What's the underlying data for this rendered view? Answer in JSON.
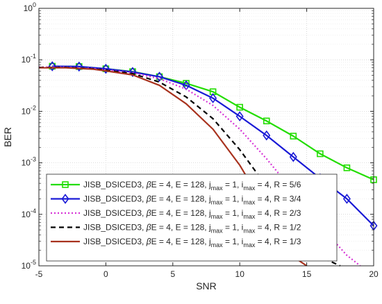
{
  "chart_data": {
    "type": "line",
    "title": "",
    "xlabel": "SNR",
    "ylabel": "BER",
    "xlim": [
      -5,
      20
    ],
    "ylim": [
      1e-05,
      1
    ],
    "yscale": "log",
    "grid": true,
    "legend_placement": "bottom-left",
    "x_ticks": [
      "-5",
      "0",
      "5",
      "10",
      "15",
      "20"
    ],
    "y_ticks": [
      {
        "base": "10",
        "exp": "0"
      },
      {
        "base": "10",
        "exp": "-1"
      },
      {
        "base": "10",
        "exp": "-2"
      },
      {
        "base": "10",
        "exp": "-3"
      },
      {
        "base": "10",
        "exp": "-4"
      },
      {
        "base": "10",
        "exp": "-5"
      }
    ],
    "series": [
      {
        "name": "JISB_DSICED3, βE = 4, E = 128, jmax = 1, imax = 4, R = 5/6",
        "legend": {
          "prefix": "JISB_DSICED3, ",
          "beta": "β",
          "mid": "E = 4, E = 128, j",
          "sub1": "max",
          "mid2": " = 1, i",
          "sub2": "max",
          "suffix": " = 4, R = 5/6"
        },
        "color": "#22dd00",
        "dash": "solid",
        "marker": "square",
        "x": [
          -4,
          -2,
          0,
          2,
          4,
          6,
          8,
          10,
          12,
          14,
          16,
          18,
          20
        ],
        "y": [
          0.075,
          0.074,
          0.067,
          0.059,
          0.047,
          0.035,
          0.024,
          0.012,
          0.0065,
          0.0033,
          0.0015,
          0.0008,
          0.00047
        ]
      },
      {
        "name": "JISB_DSICED3, βE = 4, E = 128, jmax = 1, imax = 4, R = 3/4",
        "legend": {
          "prefix": "JISB_DSICED3, ",
          "beta": "β",
          "mid": "E = 4, E = 128, j",
          "sub1": "max",
          "mid2": " = 1, i",
          "sub2": "max",
          "suffix": " = 4, R = 3/4"
        },
        "color": "#1a1ad6",
        "dash": "solid",
        "marker": "diamond",
        "x": [
          -4,
          -2,
          0,
          2,
          4,
          6,
          8,
          10,
          12,
          14,
          16,
          18,
          20
        ],
        "y": [
          0.075,
          0.074,
          0.067,
          0.058,
          0.047,
          0.032,
          0.018,
          0.008,
          0.0034,
          0.0013,
          0.0005,
          0.0002,
          6e-05
        ]
      },
      {
        "name": "JISB_DSICED3, βE = 4, E = 128, jmax = 1, imax = 4, R = 2/3",
        "legend": {
          "prefix": "JISB_DSICED3, ",
          "beta": "β",
          "mid": "E = 4, E = 128, j",
          "sub1": "max",
          "mid2": " = 1, i",
          "sub2": "max",
          "suffix": " = 4, R = 2/3"
        },
        "color": "#d633d6",
        "dash": "dot",
        "marker": "none",
        "x": [
          -5,
          -3,
          -1,
          0,
          2,
          4,
          6,
          8,
          10,
          12,
          14,
          16,
          18,
          19
        ],
        "y": [
          0.072,
          0.072,
          0.068,
          0.064,
          0.056,
          0.043,
          0.027,
          0.013,
          0.0045,
          0.0012,
          0.00028,
          6e-05,
          1.6e-05,
          1e-05
        ]
      },
      {
        "name": "JISB_DSICED3, βE = 4, E = 128, jmax = 1, imax = 4, R = 1/2",
        "legend": {
          "prefix": "JISB_DSICED3, ",
          "beta": "β",
          "mid": "E = 4, E = 128, j",
          "sub1": "max",
          "mid2": " = 1, i",
          "sub2": "max",
          "suffix": " = 4, R = 1/2"
        },
        "color": "#000000",
        "dash": "dash",
        "marker": "none",
        "x": [
          -5,
          -3,
          -1,
          0,
          2,
          4,
          6,
          8,
          10,
          12,
          14,
          16,
          17.5
        ],
        "y": [
          0.071,
          0.071,
          0.067,
          0.063,
          0.054,
          0.037,
          0.019,
          0.0072,
          0.0018,
          0.00035,
          6.5e-05,
          1.5e-05,
          1e-05
        ]
      },
      {
        "name": "JISB_DSICED3, βE = 4, E = 128, jmax = 1, imax = 4, R = 1/3",
        "legend": {
          "prefix": "JISB_DSICED3, ",
          "beta": "β",
          "mid": "E = 4, E = 128, j",
          "sub1": "max",
          "mid2": " = 1, i",
          "sub2": "max",
          "suffix": " = 4, R = 1/3"
        },
        "color": "#a8321e",
        "dash": "solid",
        "marker": "none",
        "x": [
          -5,
          -3,
          -1,
          0,
          2,
          4,
          6,
          8,
          10,
          12,
          14,
          15
        ],
        "y": [
          0.07,
          0.07,
          0.066,
          0.061,
          0.051,
          0.032,
          0.014,
          0.0045,
          0.0009,
          0.00012,
          1.5e-05,
          1e-05
        ]
      }
    ]
  }
}
